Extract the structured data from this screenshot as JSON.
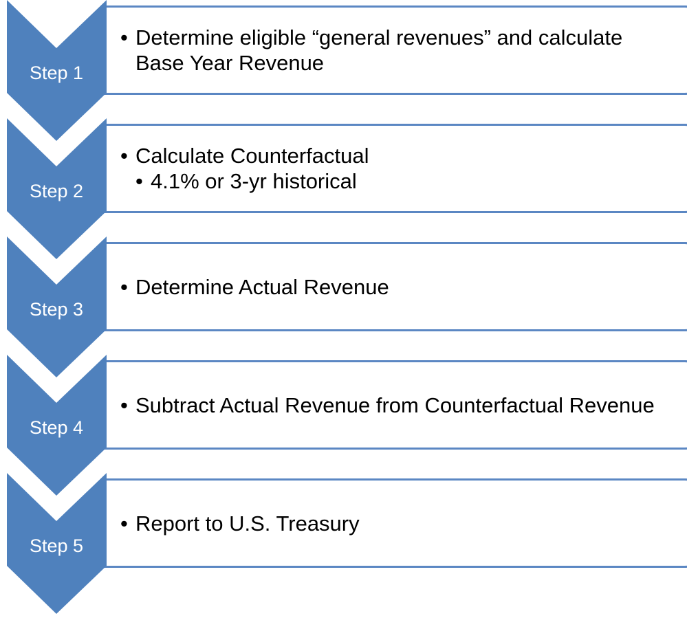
{
  "steps": [
    {
      "label": "Step 1",
      "items": [
        {
          "text": "Determine eligible “general revenues” and calculate Base Year Revenue"
        }
      ]
    },
    {
      "label": "Step 2",
      "items": [
        {
          "text": "Calculate Counterfactual",
          "subitems": [
            "4.1% or 3-yr historical"
          ]
        }
      ]
    },
    {
      "label": "Step 3",
      "items": [
        {
          "text": "Determine Actual Revenue"
        }
      ]
    },
    {
      "label": "Step 4",
      "items": [
        {
          "text": "Subtract Actual Revenue from Counterfactual Revenue"
        }
      ]
    },
    {
      "label": "Step 5",
      "items": [
        {
          "text": "Report to U.S. Treasury"
        }
      ]
    }
  ]
}
